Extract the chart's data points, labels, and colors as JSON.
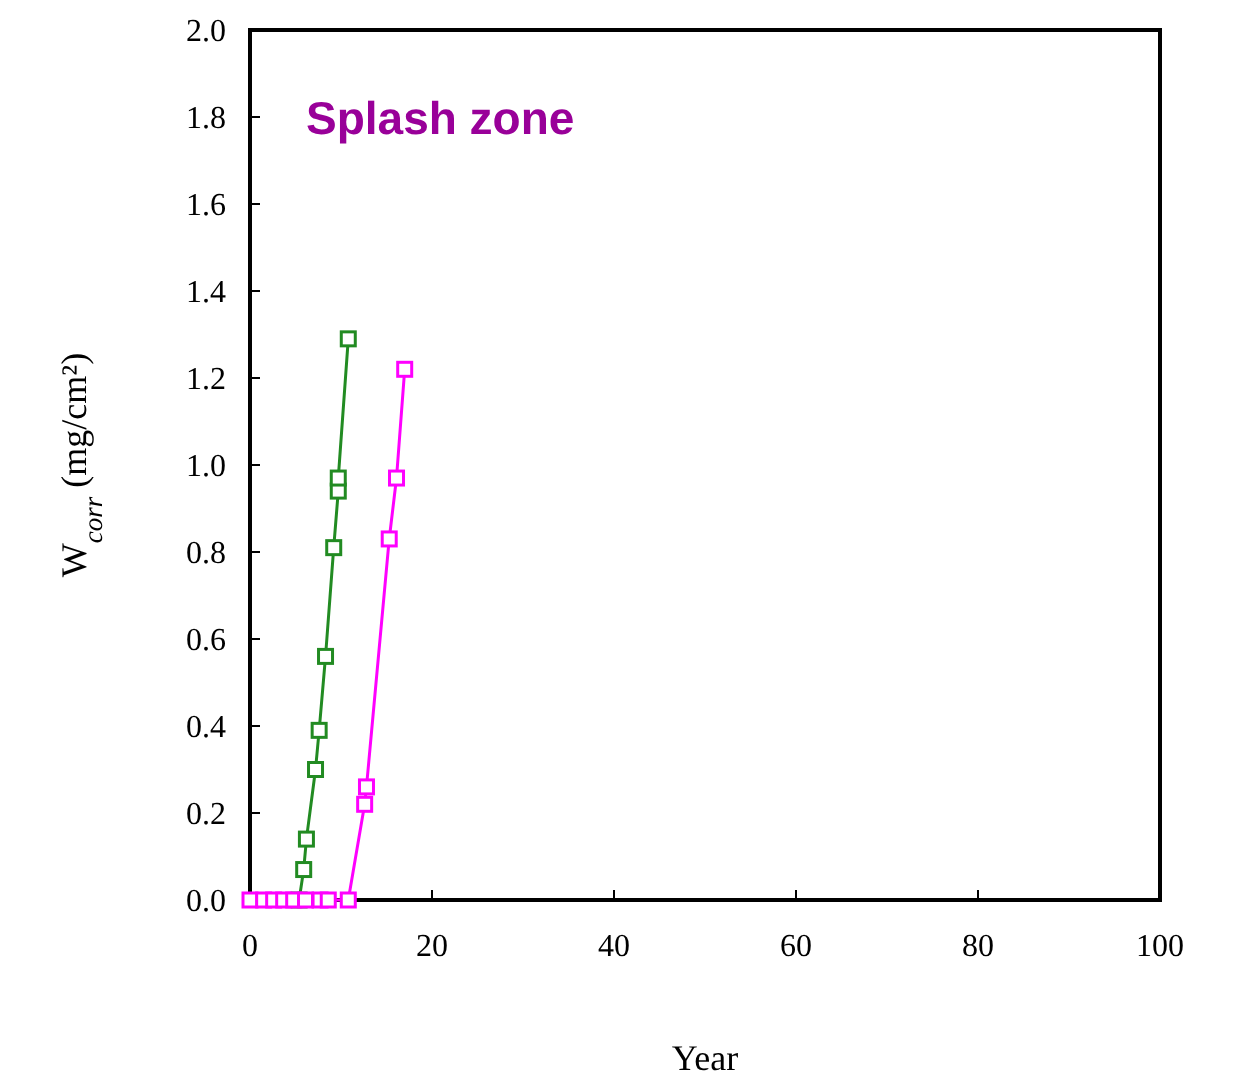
{
  "chart_data": {
    "type": "line",
    "xlabel": "Year",
    "ylabel": "W$_{corr}$ (mg/cm²)",
    "annotations": [
      "Splash zone"
    ],
    "series": [
      {
        "color": "#228b22",
        "x": [
          5.4,
          5.9,
          6.2,
          7.2,
          7.6,
          8.3,
          9.2,
          9.7,
          9.7,
          10.8
        ],
        "values": [
          0,
          0.07,
          0.14,
          0.3,
          0.39,
          0.56,
          0.81,
          0.94,
          0.97,
          1.29
        ]
      },
      {
        "color": "#ff00ff",
        "x": [
          0,
          1.5,
          2.6,
          3.7,
          4.8,
          6.1,
          7.7,
          8.6,
          10.8,
          12.6,
          12.8,
          15.3,
          16.1,
          17.0
        ],
        "values": [
          0,
          0,
          0,
          0,
          0,
          0,
          0,
          0,
          0,
          0.22,
          0.26,
          0.83,
          0.97,
          1.22
        ]
      }
    ],
    "xlim": [
      0,
      100
    ],
    "xticks": [
      0,
      20,
      40,
      60,
      80,
      100
    ],
    "ylim": [
      0,
      2
    ],
    "yticks": [
      {
        "value": 0,
        "label": "0.0"
      },
      {
        "value": 0.2,
        "label": "0.2"
      },
      {
        "value": 0.4,
        "label": "0.4"
      },
      {
        "value": 0.6,
        "label": "0.6"
      },
      {
        "value": 0.8,
        "label": "0.8"
      },
      {
        "value": 1,
        "label": "1.0"
      },
      {
        "value": 1.2,
        "label": "1.2"
      },
      {
        "value": 1.4,
        "label": "1.4"
      },
      {
        "value": 1.6,
        "label": "1.6"
      },
      {
        "value": 1.8,
        "label": "1.8"
      },
      {
        "value": 2,
        "label": "2.0"
      }
    ],
    "marker": "square",
    "line_style": "solid",
    "grid": false
  }
}
